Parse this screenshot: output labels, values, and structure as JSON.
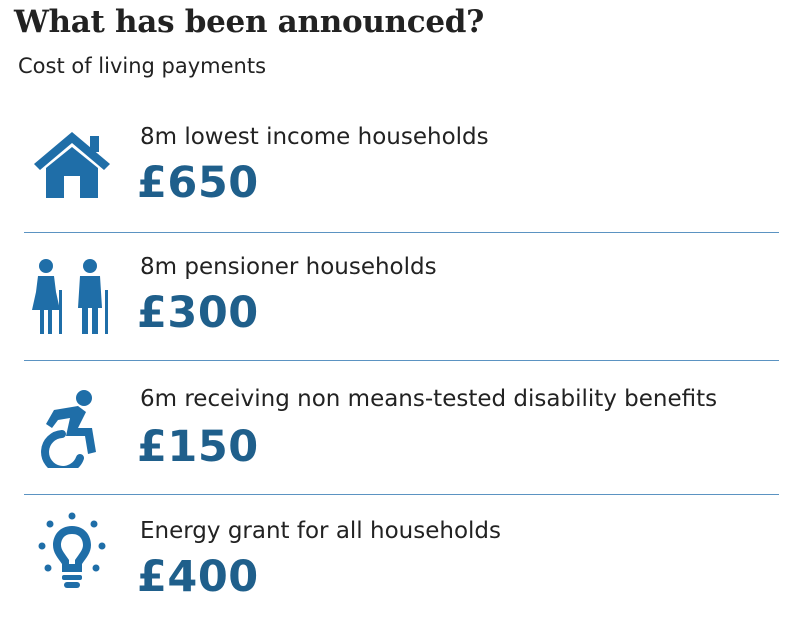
{
  "header": {
    "title": "What has been announced?",
    "subtitle": "Cost of living payments"
  },
  "colors": {
    "icon": "#1f6ea8",
    "amount": "#1f5f8b",
    "divider": "#5b93c2"
  },
  "items": [
    {
      "icon": "house-icon",
      "label": "8m lowest income households",
      "amount": "£650"
    },
    {
      "icon": "pensioners-icon",
      "label": "8m pensioner households",
      "amount": "£300"
    },
    {
      "icon": "wheelchair-icon",
      "label": "6m receiving non means-tested disability benefits",
      "amount": "£150"
    },
    {
      "icon": "lightbulb-icon",
      "label": "Energy grant for all households",
      "amount": "£400"
    }
  ]
}
